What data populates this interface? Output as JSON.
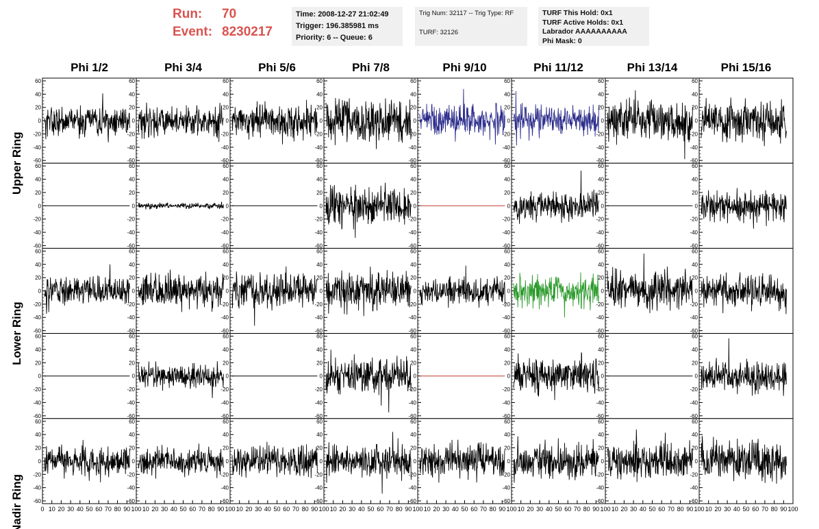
{
  "header": {
    "run_label": "Run:",
    "run_value": "70",
    "event_label": "Event:",
    "event_value": "8230217",
    "box1": [
      "Time: 2008-12-27 21:02:49",
      "Trigger: 196.385981 ms",
      "Priority: 6 -- Queue: 6"
    ],
    "box2": [
      "Trig Num: 32117 -- Trig Type: RF",
      "",
      "TURF: 32126"
    ],
    "box3": [
      "TURF This Hold: 0x1",
      "TURF Active Holds: 0x1",
      "Labrador AAAAAAAAAA",
      "Phi Mask: 0"
    ]
  },
  "colors": {
    "run_text": "#d9534f",
    "trace_default": "#000000",
    "trace_blue": "#2b2b8c",
    "trace_green": "#2a9a2a",
    "trace_flat": "#c0392b"
  },
  "chart_data": {
    "type": "line",
    "columns": [
      "Phi 1/2",
      "Phi 3/4",
      "Phi 5/6",
      "Phi 7/8",
      "Phi 9/10",
      "Phi 11/12",
      "Phi 13/14",
      "Phi 15/16"
    ],
    "rows": [
      "Upper Ring",
      "",
      "Lower Ring",
      "",
      "Nadir Ring"
    ],
    "ylim": [
      -60,
      60
    ],
    "yticks": [
      60,
      40,
      20,
      0,
      -20,
      -40,
      -60
    ],
    "xlim": [
      0,
      100
    ],
    "xticks": [
      0,
      10,
      20,
      30,
      40,
      50,
      60,
      70,
      80,
      90,
      100
    ],
    "panels": [
      [
        {
          "amp": 11,
          "color": "trace_default"
        },
        {
          "amp": 11,
          "color": "trace_default"
        },
        {
          "amp": 13,
          "color": "trace_default"
        },
        {
          "amp": 16,
          "color": "trace_default"
        },
        {
          "amp": 12,
          "color": "trace_blue"
        },
        {
          "amp": 11,
          "color": "trace_blue"
        },
        {
          "amp": 14,
          "color": "trace_default"
        },
        {
          "amp": 14,
          "color": "trace_default"
        }
      ],
      [
        {
          "amp": 0,
          "color": "trace_default"
        },
        {
          "amp": 2,
          "color": "trace_default"
        },
        {
          "amp": 0,
          "color": "trace_default"
        },
        {
          "amp": 14,
          "color": "trace_default"
        },
        {
          "amp": 0,
          "color": "trace_flat"
        },
        {
          "amp": 11,
          "color": "trace_default"
        },
        {
          "amp": 0,
          "color": "trace_default"
        },
        {
          "amp": 12,
          "color": "trace_default"
        }
      ],
      [
        {
          "amp": 10,
          "color": "trace_default"
        },
        {
          "amp": 12,
          "color": "trace_default"
        },
        {
          "amp": 14,
          "color": "trace_default"
        },
        {
          "amp": 14,
          "color": "trace_default"
        },
        {
          "amp": 10,
          "color": "trace_default"
        },
        {
          "amp": 11,
          "color": "trace_green"
        },
        {
          "amp": 14,
          "color": "trace_default"
        },
        {
          "amp": 12,
          "color": "trace_default"
        }
      ],
      [
        {
          "amp": 0,
          "color": "trace_default"
        },
        {
          "amp": 9,
          "color": "trace_default"
        },
        {
          "amp": 0,
          "color": "trace_default"
        },
        {
          "amp": 13,
          "color": "trace_default"
        },
        {
          "amp": 0,
          "color": "trace_flat"
        },
        {
          "amp": 13,
          "color": "trace_default"
        },
        {
          "amp": 0,
          "color": "trace_default"
        },
        {
          "amp": 11,
          "color": "trace_default"
        }
      ],
      [
        {
          "amp": 11,
          "color": "trace_default"
        },
        {
          "amp": 10,
          "color": "trace_default"
        },
        {
          "amp": 11,
          "color": "trace_default"
        },
        {
          "amp": 13,
          "color": "trace_default"
        },
        {
          "amp": 12,
          "color": "trace_default"
        },
        {
          "amp": 13,
          "color": "trace_default"
        },
        {
          "amp": 13,
          "color": "trace_default"
        },
        {
          "amp": 14,
          "color": "trace_default"
        }
      ]
    ]
  }
}
